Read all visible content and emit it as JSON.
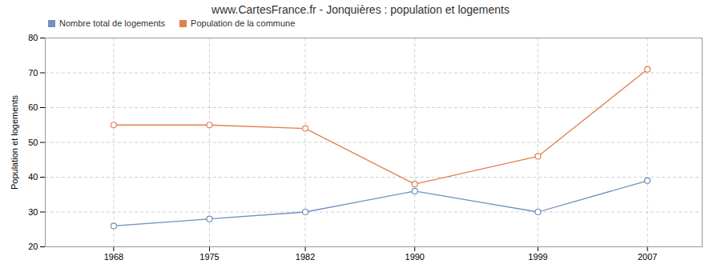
{
  "chart_data": {
    "type": "line",
    "title": "www.CartesFrance.fr - Jonquières : population et logements",
    "ylabel": "Population et logements",
    "x": [
      1968,
      1975,
      1982,
      1990,
      1999,
      2007
    ],
    "xlim": [
      1963,
      2011
    ],
    "xticks": [
      1968,
      1975,
      1982,
      1990,
      1999,
      2007
    ],
    "ylim": [
      20,
      80
    ],
    "yticks": [
      20,
      30,
      40,
      50,
      60,
      70,
      80
    ],
    "grid": true,
    "legend": "upper left",
    "marker": "o",
    "series": [
      {
        "name": "Nombre total de logements",
        "color": "#7090c0",
        "values": [
          26,
          28,
          30,
          36,
          30,
          39
        ]
      },
      {
        "name": "Population de la commune",
        "color": "#e08050",
        "values": [
          55,
          55,
          54,
          38,
          46,
          71
        ]
      }
    ]
  }
}
